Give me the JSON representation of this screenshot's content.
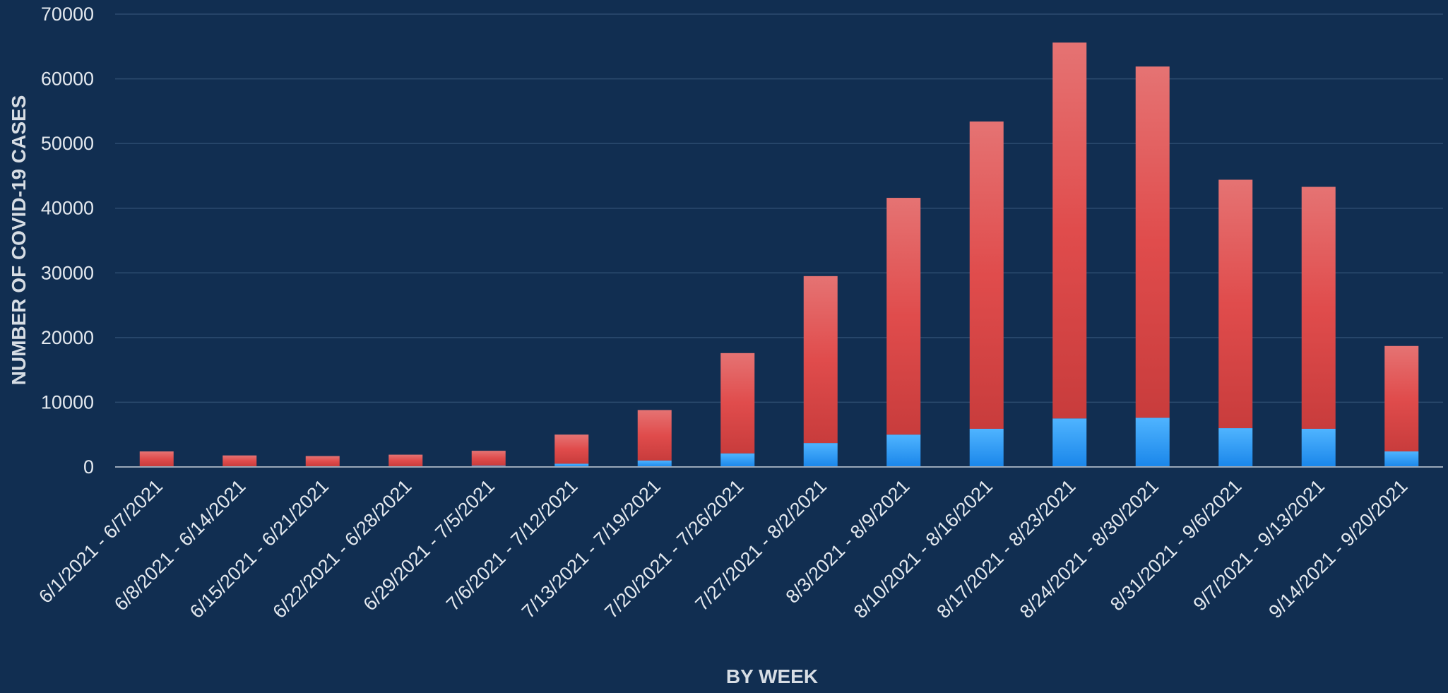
{
  "chart_data": {
    "type": "bar",
    "stacked": true,
    "title": "",
    "xlabel": "BY WEEK",
    "ylabel": "NUMBER OF COVID-19 CASES",
    "ylim": [
      0,
      70000
    ],
    "yticks": [
      0,
      10000,
      20000,
      30000,
      40000,
      50000,
      60000,
      70000
    ],
    "grid": true,
    "legend": "none",
    "categories": [
      "6/1/2021 - 6/7/2021",
      "6/8/2021 - 6/14/2021",
      "6/15/2021 - 6/21/2021",
      "6/22/2021 - 6/28/2021",
      "6/29/2021 - 7/5/2021",
      "7/6/2021 - 7/12/2021",
      "7/13/2021 - 7/19/2021",
      "7/20/2021 - 7/26/2021",
      "7/27/2021 - 8/2/2021",
      "8/3/2021 - 8/9/2021",
      "8/10/2021 - 8/16/2021",
      "8/17/2021 - 8/23/2021",
      "8/24/2021 - 8/30/2021",
      "8/31/2021 - 9/6/2021",
      "9/7/2021 - 9/13/2021",
      "9/14/2021 - 9/20/2021"
    ],
    "series": [
      {
        "color": "#2e9fff",
        "values": [
          100,
          80,
          80,
          100,
          200,
          500,
          1000,
          2100,
          3700,
          5000,
          5900,
          7500,
          7600,
          6000,
          5900,
          2400
        ]
      },
      {
        "color": "#e05050",
        "values": [
          2300,
          1700,
          1600,
          1800,
          2300,
          4500,
          7800,
          15500,
          25800,
          36600,
          47500,
          58100,
          54300,
          38400,
          37400,
          16300
        ]
      }
    ]
  },
  "colors": {
    "background": "#112e51",
    "gridline": "#2d4c70",
    "axis": "#9aa8b8",
    "text": "#e4e9ef"
  }
}
